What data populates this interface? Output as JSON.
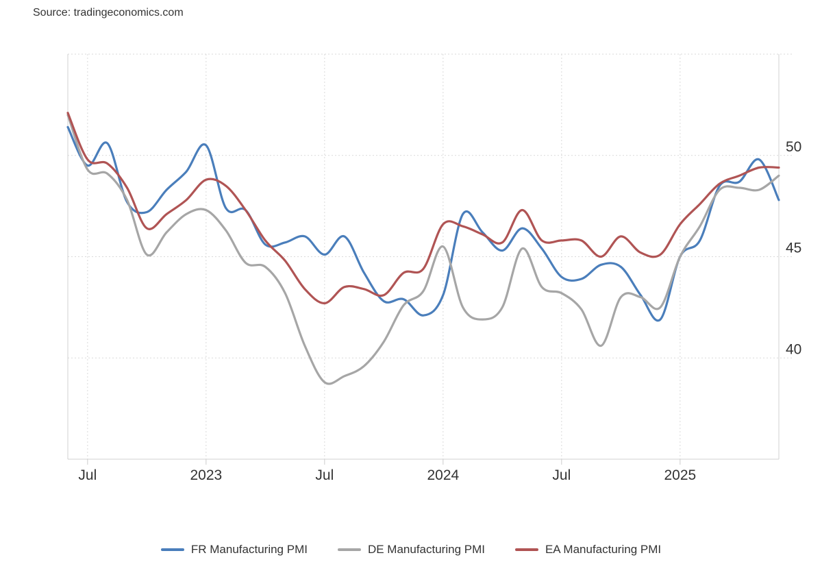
{
  "source": "Source: tradingeconomics.com",
  "chart_data": {
    "type": "line",
    "title": "",
    "xlabel": "",
    "ylabel": "",
    "x_range": [
      "2022-06",
      "2025-06"
    ],
    "ylim": [
      35,
      55
    ],
    "y_ticks": [
      40,
      45,
      50
    ],
    "x_ticks": [
      {
        "label": "Jul",
        "x": "2022-07"
      },
      {
        "label": "2023",
        "x": "2023-01"
      },
      {
        "label": "Jul",
        "x": "2023-07"
      },
      {
        "label": "2024",
        "x": "2024-01"
      },
      {
        "label": "Jul",
        "x": "2024-07"
      },
      {
        "label": "2025",
        "x": "2025-01"
      }
    ],
    "grid": true,
    "legend_position": "bottom",
    "series": [
      {
        "name": "FR Manufacturing PMI",
        "color": "#4a7ebb",
        "x": [
          "2022-06",
          "2022-07",
          "2022-08",
          "2022-09",
          "2022-10",
          "2022-11",
          "2022-12",
          "2023-01",
          "2023-02",
          "2023-03",
          "2023-04",
          "2023-05",
          "2023-06",
          "2023-07",
          "2023-08",
          "2023-09",
          "2023-10",
          "2023-11",
          "2023-12",
          "2024-01",
          "2024-02",
          "2024-03",
          "2024-04",
          "2024-05",
          "2024-06",
          "2024-07",
          "2024-08",
          "2024-09",
          "2024-10",
          "2024-11",
          "2024-12",
          "2025-01",
          "2025-02",
          "2025-03",
          "2025-04",
          "2025-05",
          "2025-06"
        ],
        "values": [
          51.4,
          49.5,
          50.6,
          47.7,
          47.2,
          48.3,
          49.2,
          50.5,
          47.4,
          47.3,
          45.6,
          45.7,
          46.0,
          45.1,
          46.0,
          44.2,
          42.8,
          42.9,
          42.1,
          43.1,
          47.1,
          46.2,
          45.3,
          46.4,
          45.4,
          44.0,
          43.9,
          44.6,
          44.5,
          43.1,
          41.9,
          45.0,
          45.8,
          48.5,
          48.7,
          49.8,
          47.8
        ]
      },
      {
        "name": "DE Manufacturing PMI",
        "color": "#a6a6a6",
        "x": [
          "2022-06",
          "2022-07",
          "2022-08",
          "2022-09",
          "2022-10",
          "2022-11",
          "2022-12",
          "2023-01",
          "2023-02",
          "2023-03",
          "2023-04",
          "2023-05",
          "2023-06",
          "2023-07",
          "2023-08",
          "2023-09",
          "2023-10",
          "2023-11",
          "2023-12",
          "2024-01",
          "2024-02",
          "2024-03",
          "2024-04",
          "2024-05",
          "2024-06",
          "2024-07",
          "2024-08",
          "2024-09",
          "2024-10",
          "2024-11",
          "2024-12",
          "2025-01",
          "2025-02",
          "2025-03",
          "2025-04",
          "2025-05",
          "2025-06"
        ],
        "values": [
          52.0,
          49.3,
          49.1,
          47.8,
          45.1,
          46.2,
          47.1,
          47.3,
          46.3,
          44.7,
          44.5,
          43.2,
          40.6,
          38.8,
          39.1,
          39.6,
          40.8,
          42.6,
          43.3,
          45.5,
          42.5,
          41.9,
          42.5,
          45.4,
          43.5,
          43.2,
          42.4,
          40.6,
          43.0,
          43.0,
          42.5,
          45.0,
          46.5,
          48.3,
          48.4,
          48.3,
          49.0
        ]
      },
      {
        "name": "EA Manufacturing PMI",
        "color": "#b05454",
        "x": [
          "2022-06",
          "2022-07",
          "2022-08",
          "2022-09",
          "2022-10",
          "2022-11",
          "2022-12",
          "2023-01",
          "2023-02",
          "2023-03",
          "2023-04",
          "2023-05",
          "2023-06",
          "2023-07",
          "2023-08",
          "2023-09",
          "2023-10",
          "2023-11",
          "2023-12",
          "2024-01",
          "2024-02",
          "2024-03",
          "2024-04",
          "2024-05",
          "2024-06",
          "2024-07",
          "2024-08",
          "2024-09",
          "2024-10",
          "2024-11",
          "2024-12",
          "2025-01",
          "2025-02",
          "2025-03",
          "2025-04",
          "2025-05",
          "2025-06"
        ],
        "values": [
          52.1,
          49.8,
          49.6,
          48.4,
          46.4,
          47.1,
          47.8,
          48.8,
          48.5,
          47.3,
          45.8,
          44.8,
          43.4,
          42.7,
          43.5,
          43.4,
          43.1,
          44.2,
          44.4,
          46.6,
          46.5,
          46.1,
          45.7,
          47.3,
          45.8,
          45.8,
          45.8,
          45.0,
          46.0,
          45.2,
          45.1,
          46.6,
          47.6,
          48.6,
          49.0,
          49.4,
          49.4
        ]
      }
    ]
  }
}
